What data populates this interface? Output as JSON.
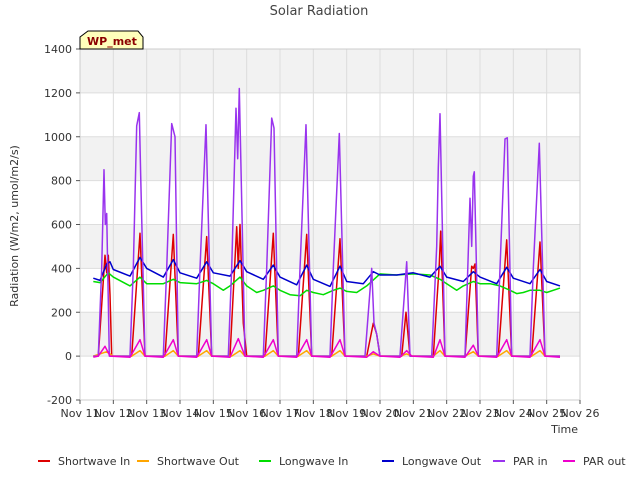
{
  "chart_data": {
    "type": "line",
    "title": "Solar Radiation",
    "xlabel": "Time",
    "ylabel": "Radiation (W/m2, umol/m2/s)",
    "station_label": "WP_met",
    "ylim": [
      -200,
      1400
    ],
    "yticks": [
      -200,
      0,
      200,
      400,
      600,
      800,
      1000,
      1200,
      1400
    ],
    "xlim": [
      11,
      26
    ],
    "xticks": [
      {
        "v": 11,
        "label": "Nov 11"
      },
      {
        "v": 12,
        "label": "Nov 12"
      },
      {
        "v": 13,
        "label": "Nov 13"
      },
      {
        "v": 14,
        "label": "Nov 14"
      },
      {
        "v": 15,
        "label": "Nov 15"
      },
      {
        "v": 16,
        "label": "Nov 16"
      },
      {
        "v": 17,
        "label": "Nov 17"
      },
      {
        "v": 18,
        "label": "Nov 18"
      },
      {
        "v": 19,
        "label": "Nov 19"
      },
      {
        "v": 20,
        "label": "Nov 20"
      },
      {
        "v": 21,
        "label": "Nov 21"
      },
      {
        "v": 22,
        "label": "Nov 22"
      },
      {
        "v": 23,
        "label": "Nov 23"
      },
      {
        "v": 24,
        "label": "Nov 24"
      },
      {
        "v": 25,
        "label": "Nov 25"
      },
      {
        "v": 26,
        "label": "Nov 26"
      }
    ],
    "grid": true,
    "legend_position": "bottom",
    "series": [
      {
        "name": "Shortwave In",
        "color": "#dd0000",
        "points": [
          [
            11.4,
            0
          ],
          [
            11.55,
            0
          ],
          [
            11.75,
            460
          ],
          [
            11.8,
            380
          ],
          [
            11.85,
            460
          ],
          [
            11.9,
            280
          ],
          [
            11.95,
            0
          ],
          [
            12.55,
            0
          ],
          [
            12.8,
            560
          ],
          [
            12.95,
            0
          ],
          [
            13.55,
            0
          ],
          [
            13.8,
            555
          ],
          [
            13.95,
            0
          ],
          [
            14.55,
            0
          ],
          [
            14.8,
            545
          ],
          [
            14.95,
            0
          ],
          [
            15.5,
            0
          ],
          [
            15.7,
            590
          ],
          [
            15.75,
            400
          ],
          [
            15.8,
            600
          ],
          [
            15.9,
            150
          ],
          [
            16.0,
            0
          ],
          [
            16.55,
            0
          ],
          [
            16.8,
            560
          ],
          [
            16.95,
            0
          ],
          [
            17.55,
            0
          ],
          [
            17.8,
            555
          ],
          [
            17.95,
            0
          ],
          [
            18.55,
            0
          ],
          [
            18.8,
            535
          ],
          [
            18.95,
            0
          ],
          [
            19.6,
            0
          ],
          [
            19.8,
            150
          ],
          [
            19.9,
            100
          ],
          [
            20.0,
            0
          ],
          [
            20.65,
            0
          ],
          [
            20.78,
            200
          ],
          [
            20.9,
            0
          ],
          [
            21.6,
            0
          ],
          [
            21.78,
            420
          ],
          [
            21.82,
            570
          ],
          [
            21.95,
            0
          ],
          [
            22.55,
            0
          ],
          [
            22.75,
            410
          ],
          [
            22.8,
            400
          ],
          [
            22.85,
            420
          ],
          [
            22.95,
            0
          ],
          [
            23.55,
            0
          ],
          [
            23.8,
            530
          ],
          [
            23.95,
            0
          ],
          [
            24.55,
            0
          ],
          [
            24.8,
            520
          ],
          [
            24.95,
            0
          ],
          [
            25.4,
            0
          ]
        ]
      },
      {
        "name": "Shortwave Out",
        "color": "#ffa500",
        "points": [
          [
            11.4,
            0
          ],
          [
            11.8,
            20
          ],
          [
            12.0,
            0
          ],
          [
            12.55,
            0
          ],
          [
            12.8,
            25
          ],
          [
            12.95,
            0
          ],
          [
            13.55,
            0
          ],
          [
            13.8,
            25
          ],
          [
            13.95,
            0
          ],
          [
            14.55,
            0
          ],
          [
            14.8,
            25
          ],
          [
            14.95,
            0
          ],
          [
            15.55,
            0
          ],
          [
            15.8,
            25
          ],
          [
            15.95,
            0
          ],
          [
            16.55,
            0
          ],
          [
            16.8,
            25
          ],
          [
            16.95,
            0
          ],
          [
            17.55,
            0
          ],
          [
            17.8,
            25
          ],
          [
            17.95,
            0
          ],
          [
            18.55,
            0
          ],
          [
            18.8,
            25
          ],
          [
            18.95,
            0
          ],
          [
            19.6,
            0
          ],
          [
            19.8,
            10
          ],
          [
            20.0,
            0
          ],
          [
            20.6,
            0
          ],
          [
            20.8,
            10
          ],
          [
            20.95,
            0
          ],
          [
            21.6,
            0
          ],
          [
            21.8,
            25
          ],
          [
            21.95,
            0
          ],
          [
            22.55,
            0
          ],
          [
            22.8,
            20
          ],
          [
            22.95,
            0
          ],
          [
            23.55,
            0
          ],
          [
            23.8,
            25
          ],
          [
            23.95,
            0
          ],
          [
            24.55,
            0
          ],
          [
            24.8,
            25
          ],
          [
            24.95,
            0
          ],
          [
            25.4,
            0
          ]
        ]
      },
      {
        "name": "Longwave In",
        "color": "#00dd00",
        "points": [
          [
            11.4,
            340
          ],
          [
            11.6,
            335
          ],
          [
            11.85,
            380
          ],
          [
            12.0,
            360
          ],
          [
            12.5,
            320
          ],
          [
            12.8,
            360
          ],
          [
            13.0,
            330
          ],
          [
            13.5,
            330
          ],
          [
            13.8,
            350
          ],
          [
            14.0,
            335
          ],
          [
            14.5,
            330
          ],
          [
            14.8,
            345
          ],
          [
            15.0,
            330
          ],
          [
            15.3,
            300
          ],
          [
            15.5,
            320
          ],
          [
            15.8,
            360
          ],
          [
            16.0,
            320
          ],
          [
            16.3,
            290
          ],
          [
            16.5,
            300
          ],
          [
            16.8,
            320
          ],
          [
            17.0,
            300
          ],
          [
            17.3,
            280
          ],
          [
            17.6,
            275
          ],
          [
            17.8,
            300
          ],
          [
            18.0,
            290
          ],
          [
            18.3,
            280
          ],
          [
            18.6,
            300
          ],
          [
            18.8,
            310
          ],
          [
            19.0,
            295
          ],
          [
            19.3,
            290
          ],
          [
            19.6,
            320
          ],
          [
            20.0,
            375
          ],
          [
            20.5,
            370
          ],
          [
            21.0,
            375
          ],
          [
            21.5,
            370
          ],
          [
            21.8,
            350
          ],
          [
            22.0,
            330
          ],
          [
            22.3,
            300
          ],
          [
            22.5,
            320
          ],
          [
            22.8,
            340
          ],
          [
            23.0,
            330
          ],
          [
            23.3,
            330
          ],
          [
            23.6,
            320
          ],
          [
            23.9,
            300
          ],
          [
            24.1,
            285
          ],
          [
            24.3,
            290
          ],
          [
            24.5,
            300
          ],
          [
            24.8,
            300
          ],
          [
            25.0,
            290
          ],
          [
            25.4,
            310
          ]
        ]
      },
      {
        "name": "Longwave Out",
        "color": "#0000cc",
        "points": [
          [
            11.4,
            355
          ],
          [
            11.6,
            345
          ],
          [
            11.8,
            420
          ],
          [
            11.9,
            430
          ],
          [
            12.0,
            395
          ],
          [
            12.5,
            365
          ],
          [
            12.8,
            450
          ],
          [
            13.0,
            400
          ],
          [
            13.5,
            360
          ],
          [
            13.8,
            440
          ],
          [
            14.0,
            380
          ],
          [
            14.5,
            355
          ],
          [
            14.8,
            430
          ],
          [
            15.0,
            380
          ],
          [
            15.5,
            365
          ],
          [
            15.8,
            435
          ],
          [
            16.0,
            385
          ],
          [
            16.5,
            350
          ],
          [
            16.8,
            415
          ],
          [
            17.0,
            360
          ],
          [
            17.5,
            325
          ],
          [
            17.8,
            415
          ],
          [
            18.0,
            350
          ],
          [
            18.5,
            318
          ],
          [
            18.8,
            410
          ],
          [
            19.0,
            340
          ],
          [
            19.5,
            330
          ],
          [
            19.8,
            385
          ],
          [
            20.0,
            370
          ],
          [
            20.5,
            370
          ],
          [
            21.0,
            380
          ],
          [
            21.5,
            360
          ],
          [
            21.8,
            410
          ],
          [
            22.0,
            360
          ],
          [
            22.5,
            340
          ],
          [
            22.8,
            385
          ],
          [
            23.0,
            360
          ],
          [
            23.5,
            330
          ],
          [
            23.8,
            405
          ],
          [
            24.0,
            355
          ],
          [
            24.5,
            330
          ],
          [
            24.8,
            395
          ],
          [
            25.0,
            340
          ],
          [
            25.4,
            320
          ]
        ]
      },
      {
        "name": "PAR in",
        "color": "#9933ee",
        "points": [
          [
            11.4,
            0
          ],
          [
            11.55,
            0
          ],
          [
            11.65,
            400
          ],
          [
            11.72,
            850
          ],
          [
            11.76,
            600
          ],
          [
            11.8,
            650
          ],
          [
            11.88,
            0
          ],
          [
            12.5,
            0
          ],
          [
            12.6,
            400
          ],
          [
            12.7,
            1050
          ],
          [
            12.78,
            1110
          ],
          [
            12.82,
            820
          ],
          [
            12.95,
            0
          ],
          [
            13.5,
            0
          ],
          [
            13.6,
            400
          ],
          [
            13.75,
            1060
          ],
          [
            13.85,
            1000
          ],
          [
            13.95,
            0
          ],
          [
            14.5,
            0
          ],
          [
            14.6,
            400
          ],
          [
            14.78,
            1055
          ],
          [
            14.95,
            0
          ],
          [
            15.45,
            0
          ],
          [
            15.55,
            400
          ],
          [
            15.68,
            1130
          ],
          [
            15.73,
            900
          ],
          [
            15.78,
            1220
          ],
          [
            15.95,
            0
          ],
          [
            16.5,
            0
          ],
          [
            16.6,
            400
          ],
          [
            16.75,
            1085
          ],
          [
            16.82,
            1040
          ],
          [
            16.95,
            0
          ],
          [
            17.5,
            0
          ],
          [
            17.6,
            400
          ],
          [
            17.78,
            1055
          ],
          [
            17.95,
            0
          ],
          [
            18.5,
            0
          ],
          [
            18.6,
            400
          ],
          [
            18.78,
            1015
          ],
          [
            18.95,
            0
          ],
          [
            19.55,
            0
          ],
          [
            19.75,
            400
          ],
          [
            19.82,
            150
          ],
          [
            19.9,
            100
          ],
          [
            20.0,
            0
          ],
          [
            20.6,
            0
          ],
          [
            20.8,
            430
          ],
          [
            20.9,
            0
          ],
          [
            21.55,
            0
          ],
          [
            21.7,
            500
          ],
          [
            21.75,
            860
          ],
          [
            21.8,
            1105
          ],
          [
            21.95,
            0
          ],
          [
            22.55,
            0
          ],
          [
            22.7,
            720
          ],
          [
            22.75,
            500
          ],
          [
            22.8,
            820
          ],
          [
            22.83,
            840
          ],
          [
            22.88,
            500
          ],
          [
            22.95,
            0
          ],
          [
            23.5,
            0
          ],
          [
            23.6,
            400
          ],
          [
            23.75,
            990
          ],
          [
            23.82,
            995
          ],
          [
            23.95,
            0
          ],
          [
            24.5,
            0
          ],
          [
            24.6,
            400
          ],
          [
            24.78,
            970
          ],
          [
            24.95,
            0
          ],
          [
            25.4,
            0
          ]
        ]
      },
      {
        "name": "PAR out",
        "color": "#ee00cc",
        "points": [
          [
            11.4,
            -5
          ],
          [
            11.55,
            0
          ],
          [
            11.75,
            45
          ],
          [
            11.9,
            0
          ],
          [
            12.5,
            -5
          ],
          [
            12.8,
            75
          ],
          [
            12.95,
            0
          ],
          [
            13.5,
            -5
          ],
          [
            13.8,
            75
          ],
          [
            13.95,
            0
          ],
          [
            14.5,
            -5
          ],
          [
            14.8,
            75
          ],
          [
            14.95,
            0
          ],
          [
            15.5,
            -5
          ],
          [
            15.75,
            80
          ],
          [
            15.95,
            0
          ],
          [
            16.5,
            -5
          ],
          [
            16.8,
            75
          ],
          [
            16.95,
            0
          ],
          [
            17.5,
            -5
          ],
          [
            17.8,
            75
          ],
          [
            17.95,
            0
          ],
          [
            18.5,
            -5
          ],
          [
            18.8,
            75
          ],
          [
            18.95,
            0
          ],
          [
            19.6,
            -5
          ],
          [
            19.8,
            20
          ],
          [
            20.0,
            0
          ],
          [
            20.6,
            -5
          ],
          [
            20.8,
            25
          ],
          [
            20.95,
            0
          ],
          [
            21.6,
            -5
          ],
          [
            21.8,
            75
          ],
          [
            21.95,
            0
          ],
          [
            22.55,
            -5
          ],
          [
            22.8,
            50
          ],
          [
            22.95,
            0
          ],
          [
            23.5,
            -5
          ],
          [
            23.8,
            75
          ],
          [
            23.95,
            0
          ],
          [
            24.5,
            -5
          ],
          [
            24.8,
            75
          ],
          [
            24.95,
            0
          ],
          [
            25.4,
            -5
          ]
        ]
      }
    ]
  }
}
